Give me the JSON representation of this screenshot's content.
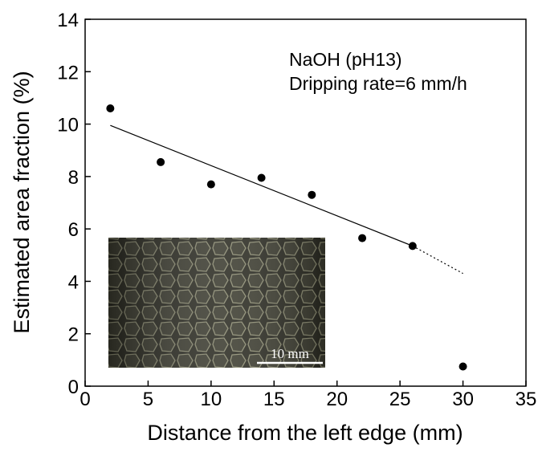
{
  "chart_data": {
    "type": "scatter",
    "xlabel": "Distance from the left edge (mm)",
    "ylabel": "Estimated area fraction (%)",
    "annotations": [
      "NaOH (pH13)",
      "Dripping rate=6 mm/h"
    ],
    "inset_scale_label": "10 mm",
    "series": [
      {
        "x": [
          2,
          6,
          10,
          14,
          18,
          22,
          26,
          30
        ],
        "values": [
          10.6,
          8.55,
          7.7,
          7.95,
          7.3,
          5.65,
          5.35,
          0.75
        ],
        "color": "#000000"
      }
    ],
    "fit": {
      "x": [
        2,
        26,
        30
      ],
      "values": [
        9.95,
        5.35,
        4.3
      ],
      "color": "#000000"
    },
    "xlim": [
      0,
      35
    ],
    "ylim": [
      0,
      14
    ],
    "xticks": [
      0,
      5,
      10,
      15,
      20,
      25,
      30,
      35
    ],
    "yticks": [
      0,
      2,
      4,
      6,
      8,
      10,
      12,
      14
    ]
  }
}
